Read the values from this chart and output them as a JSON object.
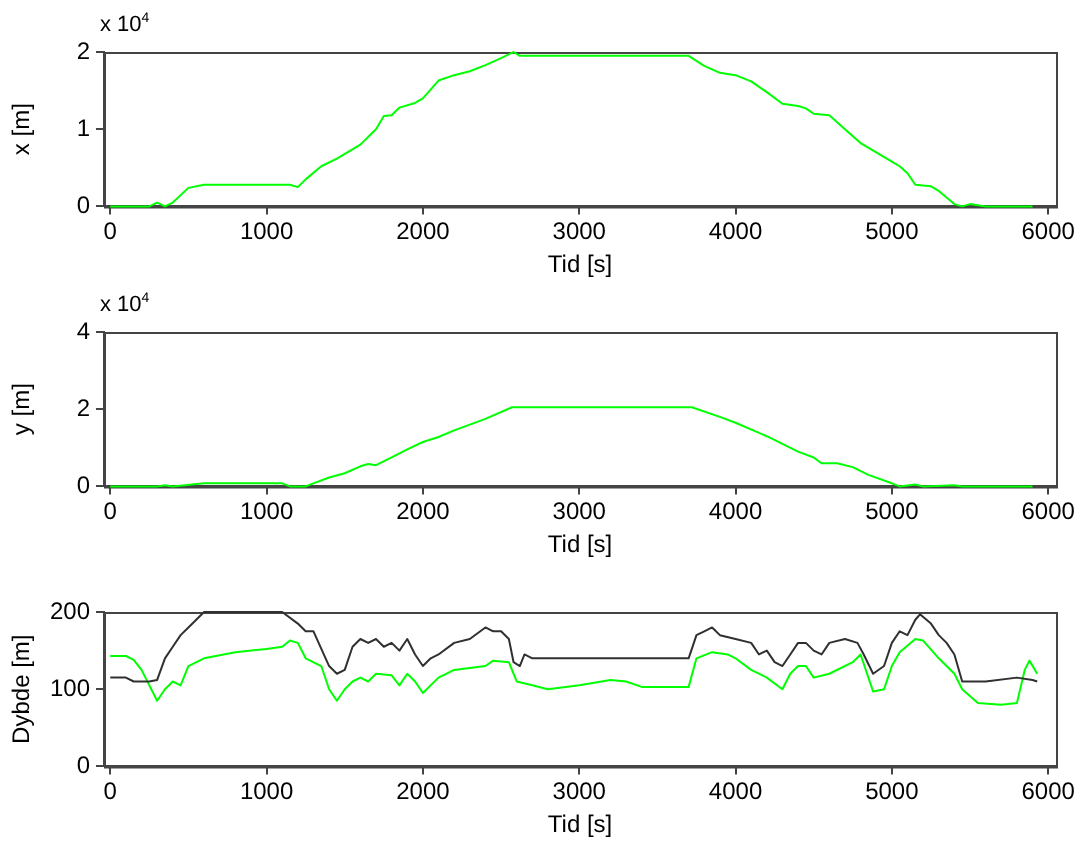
{
  "chart_data": [
    {
      "type": "line",
      "xlabel": "Tid [s]",
      "ylabel": "x [m]",
      "annotations": [
        "x 10$^{4}$"
      ],
      "xlim": [
        -40,
        6050
      ],
      "xticks": [
        0,
        1000,
        2000,
        3000,
        4000,
        5000,
        6000
      ],
      "ylim": [
        0,
        2
      ],
      "yticks": [
        0,
        1,
        2
      ],
      "grid": false,
      "legend": false,
      "marker": "none",
      "series": [
        {
          "color": "#00ff00",
          "x": [
            0,
            250,
            300,
            350,
            400,
            500,
            600,
            1000,
            1150,
            1200,
            1250,
            1350,
            1450,
            1600,
            1700,
            1750,
            1800,
            1850,
            1950,
            2000,
            2100,
            2200,
            2300,
            2400,
            2500,
            2580,
            2620,
            3000,
            3700,
            3800,
            3900,
            4000,
            4100,
            4200,
            4300,
            4400,
            4450,
            4500,
            4600,
            4700,
            4800,
            4900,
            5000,
            5050,
            5100,
            5150,
            5250,
            5300,
            5400,
            5450,
            5500,
            5600,
            5900
          ],
          "values": [
            0,
            0,
            0.05,
            0,
            0.05,
            0.24,
            0.28,
            0.28,
            0.28,
            0.25,
            0.35,
            0.52,
            0.62,
            0.8,
            1.0,
            1.17,
            1.18,
            1.28,
            1.34,
            1.4,
            1.63,
            1.7,
            1.75,
            1.83,
            1.92,
            2.0,
            1.95,
            1.95,
            1.95,
            1.82,
            1.73,
            1.7,
            1.62,
            1.48,
            1.33,
            1.3,
            1.27,
            1.2,
            1.18,
            1.0,
            0.82,
            0.7,
            0.58,
            0.52,
            0.43,
            0.28,
            0.26,
            0.2,
            0.03,
            0,
            0.03,
            0,
            0
          ]
        }
      ]
    },
    {
      "type": "line",
      "xlabel": "Tid [s]",
      "ylabel": "y [m]",
      "annotations": [
        "x 10$^{4}$"
      ],
      "xlim": [
        -40,
        6050
      ],
      "xticks": [
        0,
        1000,
        2000,
        3000,
        4000,
        5000,
        6000
      ],
      "ylim": [
        0,
        4
      ],
      "yticks": [
        0,
        2,
        4
      ],
      "grid": false,
      "legend": false,
      "marker": "none",
      "series": [
        {
          "color": "#00ff00",
          "x": [
            0,
            300,
            350,
            400,
            600,
            1100,
            1150,
            1250,
            1300,
            1400,
            1500,
            1600,
            1650,
            1700,
            1800,
            1900,
            2000,
            2100,
            2200,
            2400,
            2570,
            3000,
            3720,
            3900,
            4000,
            4200,
            4300,
            4400,
            4500,
            4550,
            4650,
            4750,
            4850,
            5000,
            5050,
            5150,
            5200,
            5400,
            5450,
            5900
          ],
          "values": [
            0,
            0,
            0.03,
            0,
            0.08,
            0.08,
            0,
            0,
            0.08,
            0.23,
            0.34,
            0.52,
            0.58,
            0.55,
            0.75,
            0.96,
            1.15,
            1.28,
            1.45,
            1.75,
            2.05,
            2.05,
            2.05,
            1.8,
            1.65,
            1.3,
            1.1,
            0.9,
            0.75,
            0.6,
            0.6,
            0.5,
            0.3,
            0.08,
            0,
            0.05,
            0,
            0.03,
            0,
            0
          ]
        }
      ]
    },
    {
      "type": "line",
      "xlabel": "Tid [s]",
      "ylabel": "Dybde [m]",
      "xlim": [
        -40,
        6050
      ],
      "xticks": [
        0,
        1000,
        2000,
        3000,
        4000,
        5000,
        6000
      ],
      "ylim": [
        0,
        200
      ],
      "yticks": [
        0,
        100,
        200
      ],
      "grid": false,
      "legend": false,
      "marker": "none",
      "series": [
        {
          "color": "#303030",
          "x": [
            0,
            100,
            150,
            250,
            300,
            350,
            400,
            450,
            500,
            600,
            1100,
            1200,
            1250,
            1300,
            1400,
            1450,
            1500,
            1550,
            1600,
            1650,
            1700,
            1750,
            1800,
            1850,
            1900,
            1950,
            2000,
            2050,
            2100,
            2200,
            2300,
            2400,
            2450,
            2500,
            2550,
            2580,
            2620,
            2650,
            2700,
            3700,
            3750,
            3800,
            3850,
            3900,
            4000,
            4100,
            4150,
            4200,
            4250,
            4300,
            4350,
            4400,
            4450,
            4500,
            4550,
            4600,
            4700,
            4780,
            4820,
            4880,
            4950,
            5000,
            5050,
            5100,
            5150,
            5180,
            5250,
            5300,
            5350,
            5400,
            5450,
            5600,
            5800,
            5900,
            5930
          ],
          "values": [
            115,
            115,
            110,
            110,
            112,
            140,
            155,
            170,
            180,
            200,
            200,
            185,
            175,
            175,
            130,
            120,
            125,
            155,
            165,
            160,
            165,
            155,
            160,
            150,
            165,
            145,
            130,
            140,
            145,
            160,
            165,
            180,
            175,
            175,
            165,
            135,
            130,
            145,
            140,
            140,
            170,
            175,
            180,
            170,
            165,
            160,
            145,
            150,
            135,
            130,
            145,
            160,
            160,
            150,
            145,
            160,
            165,
            160,
            145,
            120,
            130,
            160,
            175,
            170,
            190,
            197,
            185,
            170,
            160,
            145,
            110,
            110,
            115,
            112,
            110
          ]
        },
        {
          "color": "#00ff00",
          "x": [
            0,
            100,
            150,
            200,
            250,
            300,
            350,
            400,
            450,
            500,
            600,
            800,
            1000,
            1100,
            1150,
            1200,
            1250,
            1350,
            1400,
            1450,
            1500,
            1550,
            1600,
            1650,
            1700,
            1800,
            1850,
            1900,
            1950,
            2000,
            2100,
            2200,
            2400,
            2450,
            2550,
            2600,
            2700,
            2800,
            3000,
            3200,
            3300,
            3400,
            3700,
            3750,
            3850,
            3950,
            4000,
            4100,
            4200,
            4300,
            4350,
            4400,
            4450,
            4500,
            4600,
            4750,
            4800,
            4850,
            4880,
            4950,
            5000,
            5050,
            5150,
            5200,
            5300,
            5400,
            5450,
            5550,
            5700,
            5800,
            5850,
            5880,
            5930
          ],
          "values": [
            143,
            143,
            138,
            125,
            105,
            85,
            100,
            110,
            105,
            130,
            140,
            148,
            152,
            155,
            163,
            160,
            140,
            130,
            100,
            85,
            100,
            110,
            115,
            110,
            120,
            118,
            105,
            120,
            110,
            95,
            115,
            125,
            130,
            137,
            135,
            110,
            105,
            100,
            105,
            112,
            110,
            103,
            103,
            140,
            148,
            145,
            140,
            125,
            115,
            100,
            120,
            130,
            130,
            115,
            120,
            135,
            145,
            115,
            97,
            100,
            130,
            148,
            165,
            163,
            140,
            120,
            100,
            82,
            80,
            82,
            125,
            137,
            120
          ]
        }
      ]
    }
  ]
}
